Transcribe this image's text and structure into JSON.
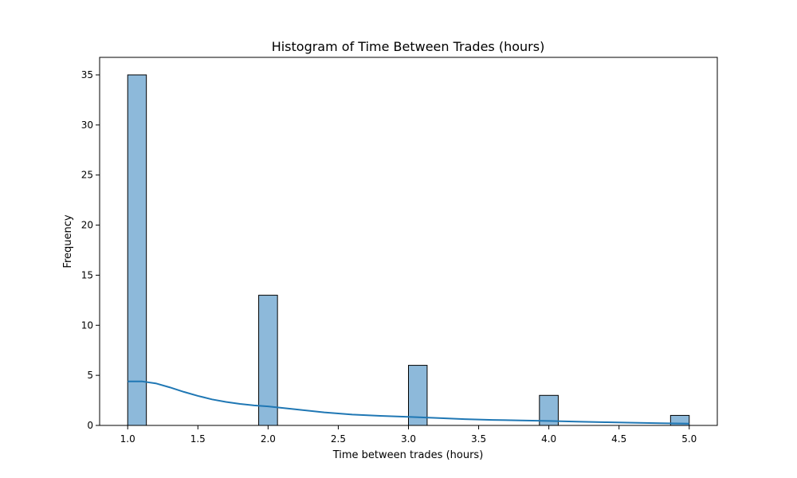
{
  "chart_data": {
    "type": "bar",
    "title": "Histogram of Time Between Trades (hours)",
    "xlabel": "Time between trades (hours)",
    "ylabel": "Frequency",
    "xlim": [
      0.8,
      5.2
    ],
    "ylim": [
      0,
      36.75
    ],
    "xticks": [
      "1.0",
      "1.5",
      "2.0",
      "2.5",
      "3.0",
      "3.5",
      "4.0",
      "4.5",
      "5.0"
    ],
    "yticks": [
      "0",
      "5",
      "10",
      "15",
      "20",
      "25",
      "30",
      "35"
    ],
    "bins": [
      {
        "x0": 1.0,
        "x1": 1.133,
        "count": 35
      },
      {
        "x0": 1.933,
        "x1": 2.067,
        "count": 13
      },
      {
        "x0": 3.0,
        "x1": 3.133,
        "count": 6
      },
      {
        "x0": 3.933,
        "x1": 4.067,
        "count": 3
      },
      {
        "x0": 4.867,
        "x1": 5.0,
        "count": 1
      }
    ],
    "kde": {
      "x": [
        1.0,
        1.1,
        1.2,
        1.3,
        1.4,
        1.5,
        1.6,
        1.7,
        1.8,
        1.9,
        2.0,
        2.2,
        2.4,
        2.6,
        2.8,
        3.0,
        3.2,
        3.4,
        3.6,
        3.8,
        4.0,
        4.2,
        4.4,
        4.6,
        4.8,
        5.0
      ],
      "y": [
        4.4,
        4.4,
        4.2,
        3.8,
        3.35,
        2.95,
        2.6,
        2.35,
        2.15,
        2.0,
        1.9,
        1.6,
        1.3,
        1.08,
        0.95,
        0.85,
        0.75,
        0.63,
        0.55,
        0.5,
        0.45,
        0.38,
        0.32,
        0.27,
        0.22,
        0.18
      ]
    },
    "colors": {
      "bar_fill": "#8db9da",
      "bar_edge": "#000000",
      "kde_line": "#1f77b4"
    },
    "grid": false
  }
}
